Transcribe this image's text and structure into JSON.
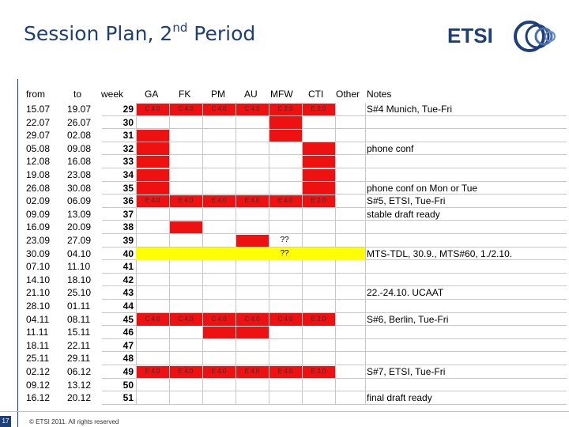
{
  "slide": {
    "title_main": "Session Plan, 2",
    "title_sup": "nd",
    "title_end": " Period",
    "logo_text": "ETSI",
    "page_number": "17",
    "copyright": "© ETSI 2011. All rights reserved"
  },
  "headers": {
    "from": "from",
    "to": "to",
    "week": "week",
    "ga": "GA",
    "fk": "FK",
    "pm": "PM",
    "au": "AU",
    "mfw": "MFW",
    "cti": "CTI",
    "other": "Other",
    "notes": "Notes"
  },
  "colors": {
    "red": "#ee1111",
    "yellow": "#ffff00",
    "title": "#1f3f78"
  },
  "rows": [
    {
      "from": "15.07",
      "to": "19.07",
      "week": "29"
    },
    {
      "from": "22.07",
      "to": "26.07",
      "week": "30"
    },
    {
      "from": "29.07",
      "to": "02.08",
      "week": "31"
    },
    {
      "from": "05.08",
      "to": "09.08",
      "week": "32"
    },
    {
      "from": "12.08",
      "to": "16.08",
      "week": "33"
    },
    {
      "from": "19.08",
      "to": "23.08",
      "week": "34"
    },
    {
      "from": "26.08",
      "to": "30.08",
      "week": "35"
    },
    {
      "from": "02.09",
      "to": "06.09",
      "week": "36"
    },
    {
      "from": "09.09",
      "to": "13.09",
      "week": "37"
    },
    {
      "from": "16.09",
      "to": "20.09",
      "week": "38"
    },
    {
      "from": "23.09",
      "to": "27.09",
      "week": "39"
    },
    {
      "from": "30.09",
      "to": "04.10",
      "week": "40"
    },
    {
      "from": "07.10",
      "to": "11.10",
      "week": "41"
    },
    {
      "from": "14.10",
      "to": "18.10",
      "week": "42"
    },
    {
      "from": "21.10",
      "to": "25.10",
      "week": "43"
    },
    {
      "from": "28.10",
      "to": "01.11",
      "week": "44"
    },
    {
      "from": "04.11",
      "to": "08.11",
      "week": "45"
    },
    {
      "from": "11.11",
      "to": "15.11",
      "week": "46"
    },
    {
      "from": "18.11",
      "to": "22.11",
      "week": "47"
    },
    {
      "from": "25.11",
      "to": "29.11",
      "week": "48"
    },
    {
      "from": "02.12",
      "to": "06.12",
      "week": "49"
    },
    {
      "from": "09.12",
      "to": "13.12",
      "week": "50"
    },
    {
      "from": "16.12",
      "to": "20.12",
      "week": "51"
    }
  ],
  "marks": [
    {
      "row": 0,
      "cols": [
        "C 4.0",
        "C 4.0",
        "C 4.0",
        "C 4.0",
        "C 2.0",
        "E 2.0"
      ]
    },
    {
      "row": 7,
      "cols": [
        "E 4.0",
        "E 4.0",
        "E 4.0",
        "E 4.0",
        "E 4.0",
        "E 2.0"
      ]
    },
    {
      "row": 16,
      "cols": [
        "C 4.0",
        "C 4.0",
        "C 4.0",
        "C 4.0",
        "C 4.0",
        "E 2.0"
      ]
    },
    {
      "row": 20,
      "cols": [
        "E 4.0",
        "E 4.0",
        "E 4.0",
        "E 4.0",
        "E 4.0",
        "E 2.0"
      ]
    }
  ],
  "red_blocks": [
    {
      "row": 0,
      "col": 0
    },
    {
      "row": 0,
      "col": 1
    },
    {
      "row": 0,
      "col": 2
    },
    {
      "row": 0,
      "col": 3
    },
    {
      "row": 0,
      "col": 4
    },
    {
      "row": 0,
      "col": 5
    },
    {
      "row": 1,
      "col": 4
    },
    {
      "row": 2,
      "col": 0
    },
    {
      "row": 2,
      "col": 4
    },
    {
      "row": 3,
      "col": 0
    },
    {
      "row": 3,
      "col": 5
    },
    {
      "row": 4,
      "col": 0
    },
    {
      "row": 4,
      "col": 5
    },
    {
      "row": 5,
      "col": 0
    },
    {
      "row": 5,
      "col": 5
    },
    {
      "row": 6,
      "col": 0
    },
    {
      "row": 6,
      "col": 5
    },
    {
      "row": 7,
      "col": 0
    },
    {
      "row": 7,
      "col": 1
    },
    {
      "row": 7,
      "col": 2
    },
    {
      "row": 7,
      "col": 3
    },
    {
      "row": 7,
      "col": 4
    },
    {
      "row": 7,
      "col": 5
    },
    {
      "row": 9,
      "col": 1
    },
    {
      "row": 10,
      "col": 3
    },
    {
      "row": 16,
      "col": 0
    },
    {
      "row": 16,
      "col": 1
    },
    {
      "row": 16,
      "col": 2
    },
    {
      "row": 16,
      "col": 3
    },
    {
      "row": 16,
      "col": 4
    },
    {
      "row": 16,
      "col": 5
    },
    {
      "row": 17,
      "col": 2
    },
    {
      "row": 17,
      "col": 3
    },
    {
      "row": 20,
      "col": 0
    },
    {
      "row": 20,
      "col": 1
    },
    {
      "row": 20,
      "col": 2
    },
    {
      "row": 20,
      "col": 3
    },
    {
      "row": 20,
      "col": 4
    },
    {
      "row": 20,
      "col": 5
    }
  ],
  "yellow_rows": [
    11
  ],
  "question_marks": [
    {
      "row": 10,
      "text": "??"
    },
    {
      "row": 11,
      "text": "??"
    }
  ],
  "notes": [
    {
      "row": 0,
      "text": "S#4 Munich, Tue-Fri"
    },
    {
      "row": 3,
      "text": "phone conf"
    },
    {
      "row": 6,
      "text": "phone conf on Mon or Tue"
    },
    {
      "row": 7,
      "text": "S#5, ETSI, Tue-Fri"
    },
    {
      "row": 8,
      "text": "stable draft ready"
    },
    {
      "row": 11,
      "text": "MTS-TDL, 30.9., MTS#60, 1./2.10."
    },
    {
      "row": 14,
      "text": "22.-24.10. UCAAT"
    },
    {
      "row": 16,
      "text": "S#6, Berlin, Tue-Fri"
    },
    {
      "row": 20,
      "text": "S#7, ETSI, Tue-Fri"
    },
    {
      "row": 22,
      "text": "final draft ready"
    }
  ]
}
